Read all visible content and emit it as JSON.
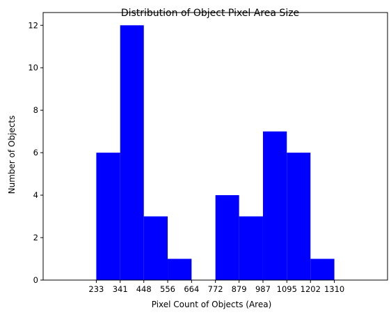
{
  "chart_data": {
    "type": "bar",
    "title": "Distribution of Object Pixel Area Size",
    "xlabel": "Pixel Count of Objects (Area)",
    "ylabel": "Number of Objects",
    "bin_edges": [
      233,
      341,
      448,
      556,
      664,
      772,
      879,
      987,
      1095,
      1202,
      1310
    ],
    "categories": [
      "233-341",
      "341-448",
      "448-556",
      "556-664",
      "664-772",
      "772-879",
      "879-987",
      "987-1095",
      "1095-1202",
      "1202-1310"
    ],
    "values": [
      6,
      12,
      3,
      1,
      0,
      4,
      3,
      7,
      6,
      1
    ],
    "xticks": [
      "233",
      "341",
      "448",
      "556",
      "664",
      "772",
      "879",
      "987",
      "1095",
      "1202",
      "1310"
    ],
    "yticks": [
      0,
      2,
      4,
      6,
      8,
      10,
      12
    ],
    "xlim": [
      -7.5,
      1550.5
    ],
    "ylim": [
      0,
      12.6
    ],
    "bar_color": "#0000ff",
    "grid": false,
    "legend": false
  }
}
